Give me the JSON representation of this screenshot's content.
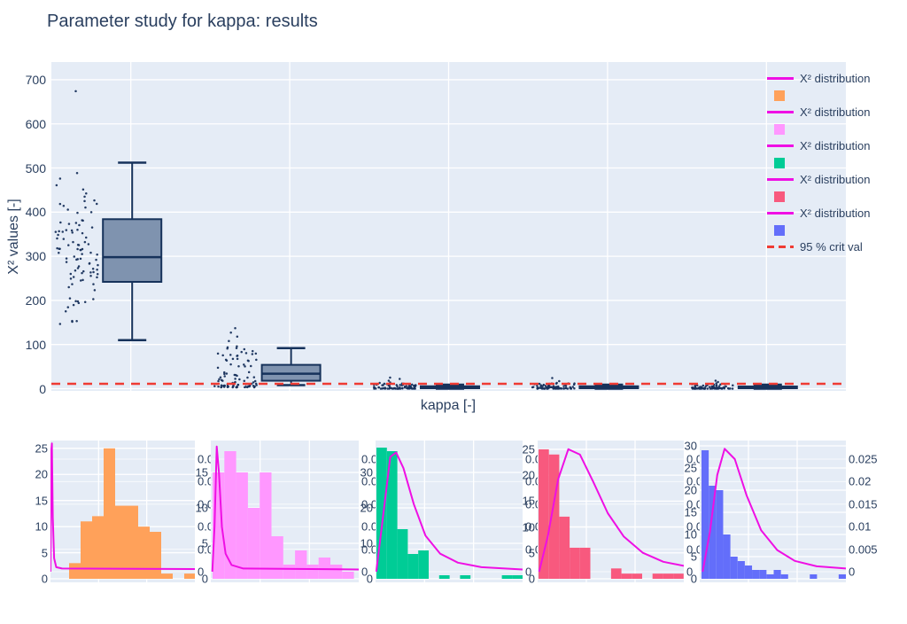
{
  "title": "Parameter study for kappa: results",
  "palette": {
    "background": "#e5ecf6",
    "grid": "#ffffff",
    "font": "#2a3f5f",
    "box_fill": "#7f93af",
    "box_line": "#16325b",
    "point": "#17305b",
    "curve": "#ef0fe4",
    "crit": "#ef3b33",
    "series": [
      "#ffa15a",
      "#ff97ff",
      "#00cc96",
      "#f8597e",
      "#636efa"
    ]
  },
  "chart_data": [
    {
      "id": "main",
      "type": "box",
      "subtype": "box-plus-strip",
      "title": "Parameter study for kappa: results",
      "xlabel": "kappa [-]",
      "ylabel": "X² values [-]",
      "ylim": [
        -5,
        740
      ],
      "yticks": [
        0,
        100,
        200,
        300,
        400,
        500,
        600,
        700
      ],
      "grid": "on",
      "legend": {
        "position": "right",
        "dist_label": "X² distribution",
        "crit_label": "95 % crit val"
      },
      "crit_line": {
        "value": 11,
        "style": "dashed"
      },
      "groups": [
        {
          "box": {
            "lo": 110,
            "q1": 242,
            "median": 298,
            "q3": 384,
            "hi": 512
          },
          "outliers": [
            674
          ],
          "points": {
            "n": 95,
            "dist": "normal",
            "center": 300,
            "spread": 95,
            "min": 108,
            "max": 516
          }
        },
        {
          "box": {
            "lo": 8,
            "q1": 18,
            "median": 34,
            "q3": 54,
            "hi": 92
          },
          "outliers": [
            108,
            118,
            127,
            137
          ],
          "points": {
            "n": 88,
            "dist": "skew",
            "min": 3,
            "max": 100,
            "power": 2.2
          }
        },
        {
          "box": {
            "lo": 0,
            "q1": 1,
            "median": 2.5,
            "q3": 5.5,
            "hi": 9
          },
          "outliers": [
            14,
            18,
            22,
            25
          ],
          "points": {
            "n": 75,
            "dist": "skew",
            "min": 0,
            "max": 13,
            "power": 2.8
          }
        },
        {
          "box": {
            "lo": 0,
            "q1": 1,
            "median": 2.5,
            "q3": 5.5,
            "hi": 9
          },
          "outliers": [
            13,
            17,
            24
          ],
          "points": {
            "n": 75,
            "dist": "skew",
            "min": 0,
            "max": 12,
            "power": 2.8
          }
        },
        {
          "box": {
            "lo": 0,
            "q1": 1,
            "median": 2.5,
            "q3": 5,
            "hi": 9
          },
          "outliers": [
            12,
            15,
            18
          ],
          "points": {
            "n": 75,
            "dist": "skew",
            "min": 0,
            "max": 11,
            "power": 2.8
          }
        }
      ]
    },
    {
      "id": "hist-1",
      "type": "bar",
      "series_color_index": 0,
      "counts": [
        3,
        11,
        12,
        25,
        14,
        14,
        10,
        9,
        1,
        0,
        1
      ],
      "count_ticks": [
        0,
        5,
        10,
        15,
        20,
        25
      ],
      "pdf_ticks": [
        0,
        0.005,
        0.01,
        0.015,
        0.02,
        0.025
      ],
      "curve": [
        [
          0,
          0
        ],
        [
          0.006,
          0.0272
        ],
        [
          0.01,
          0.0285
        ],
        [
          0.016,
          0.012
        ],
        [
          0.025,
          0.003
        ],
        [
          0.04,
          0.001
        ],
        [
          0.08,
          0.0007
        ],
        [
          1,
          0.0006
        ]
      ]
    },
    {
      "id": "hist-2",
      "type": "bar",
      "series_color_index": 1,
      "counts": [
        15,
        18,
        15,
        10,
        15,
        6,
        2,
        4,
        2,
        3,
        2,
        1
      ],
      "count_ticks": [
        0,
        5,
        10,
        15
      ],
      "pdf_ticks": [
        0,
        0.005,
        0.01,
        0.015,
        0.02,
        0.025
      ],
      "curve": [
        [
          0.01,
          0
        ],
        [
          0.025,
          0.01
        ],
        [
          0.04,
          0.0278
        ],
        [
          0.055,
          0.022
        ],
        [
          0.075,
          0.01
        ],
        [
          0.1,
          0.004
        ],
        [
          0.14,
          0.0015
        ],
        [
          0.22,
          0.0007
        ],
        [
          1,
          0.0005
        ]
      ]
    },
    {
      "id": "hist-3",
      "type": "bar",
      "series_color_index": 2,
      "counts": [
        37,
        36,
        14,
        7,
        8,
        0,
        1,
        0,
        1,
        0,
        0,
        0,
        1,
        1
      ],
      "count_ticks": [
        0,
        10,
        20,
        30
      ],
      "pdf_ticks": [
        0,
        0.005,
        0.01,
        0.015,
        0.02,
        0.025
      ],
      "curve": [
        [
          0.005,
          0
        ],
        [
          0.05,
          0.012
        ],
        [
          0.1,
          0.0255
        ],
        [
          0.14,
          0.0265
        ],
        [
          0.19,
          0.023
        ],
        [
          0.26,
          0.015
        ],
        [
          0.34,
          0.008
        ],
        [
          0.44,
          0.004
        ],
        [
          0.56,
          0.002
        ],
        [
          0.72,
          0.001
        ],
        [
          1,
          0.0005
        ]
      ]
    },
    {
      "id": "hist-4",
      "type": "bar",
      "series_color_index": 3,
      "counts": [
        25,
        24,
        12,
        6,
        6,
        0,
        0,
        2,
        1,
        1,
        0,
        1,
        1,
        1
      ],
      "count_ticks": [
        0,
        5,
        10,
        15,
        20,
        25
      ],
      "pdf_ticks": [
        0,
        0.005,
        0.01,
        0.015,
        0.02,
        0.025
      ],
      "curve": [
        [
          0.01,
          0
        ],
        [
          0.07,
          0.008
        ],
        [
          0.14,
          0.0205
        ],
        [
          0.21,
          0.0272
        ],
        [
          0.29,
          0.026
        ],
        [
          0.38,
          0.02
        ],
        [
          0.48,
          0.013
        ],
        [
          0.59,
          0.0078
        ],
        [
          0.72,
          0.0042
        ],
        [
          0.86,
          0.0022
        ],
        [
          1,
          0.0013
        ]
      ]
    },
    {
      "id": "hist-5",
      "type": "bar",
      "series_color_index": 4,
      "counts": [
        29,
        21,
        20,
        10,
        5,
        4,
        3,
        2,
        2,
        1,
        2,
        1,
        0,
        0,
        0,
        1,
        0,
        0,
        0,
        1
      ],
      "count_ticks": [
        0,
        5,
        10,
        15,
        20,
        25,
        30
      ],
      "pdf_ticks": [
        0,
        0.005,
        0.01,
        0.015,
        0.02,
        0.025
      ],
      "curve": [
        [
          0.02,
          0
        ],
        [
          0.07,
          0.009
        ],
        [
          0.12,
          0.0215
        ],
        [
          0.17,
          0.0273
        ],
        [
          0.24,
          0.025
        ],
        [
          0.32,
          0.017
        ],
        [
          0.42,
          0.0092
        ],
        [
          0.53,
          0.0048
        ],
        [
          0.65,
          0.0024
        ],
        [
          0.8,
          0.0012
        ],
        [
          1,
          0.0007
        ]
      ]
    }
  ]
}
